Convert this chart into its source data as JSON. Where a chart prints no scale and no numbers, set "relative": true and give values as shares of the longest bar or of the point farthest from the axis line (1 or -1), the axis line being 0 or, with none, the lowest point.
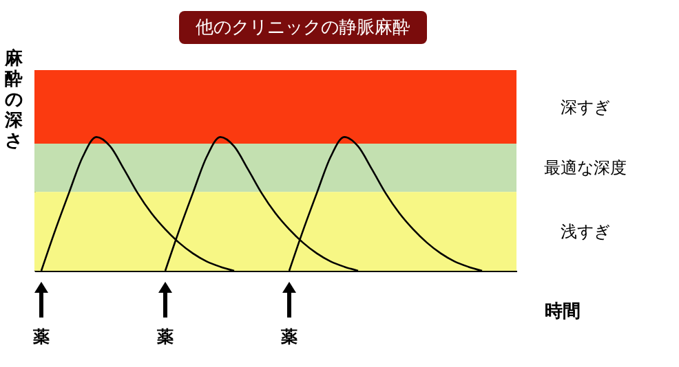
{
  "chart_data": {
    "type": "line",
    "relative": true,
    "title": "他のクリニックの静脈麻酔",
    "ylabel": "麻酔の深さ",
    "xlabel": "時間",
    "categories": [
      null,
      null,
      null,
      null,
      null,
      null,
      null,
      null,
      null,
      null,
      null,
      null,
      null,
      null,
      null,
      null,
      null,
      null,
      null,
      null,
      null,
      null,
      null,
      null,
      null,
      null,
      null,
      null,
      null,
      null,
      null,
      null,
      null,
      null,
      null
    ],
    "series": [
      {
        "color": "#000000",
        "values": [
          0,
          0.3,
          0.58,
          0.85,
          1.0,
          0.93,
          0.76,
          0.58,
          0.43,
          0.31,
          0.21,
          0.13,
          0.07,
          0.03,
          0,
          null,
          null,
          null,
          null,
          null,
          null,
          null,
          null,
          null,
          null,
          null,
          null,
          null,
          null,
          null,
          null,
          null,
          null,
          null,
          null
        ]
      },
      {
        "color": "#000000",
        "values": [
          null,
          null,
          null,
          null,
          null,
          null,
          null,
          null,
          null,
          0,
          0.3,
          0.58,
          0.85,
          1.0,
          0.93,
          0.76,
          0.58,
          0.43,
          0.31,
          0.21,
          0.13,
          0.07,
          0.03,
          0,
          null,
          null,
          null,
          null,
          null,
          null,
          null,
          null,
          null,
          null,
          null
        ]
      },
      {
        "color": "#000000",
        "values": [
          null,
          null,
          null,
          null,
          null,
          null,
          null,
          null,
          null,
          null,
          null,
          null,
          null,
          null,
          null,
          null,
          null,
          null,
          0,
          0.3,
          0.58,
          0.85,
          1.0,
          0.93,
          0.76,
          0.58,
          0.43,
          0.31,
          0.21,
          0.13,
          0.07,
          0.03,
          0,
          null,
          null
        ]
      }
    ],
    "bands": [
      {
        "axis": "y",
        "from": 0.95,
        "to": 1.5,
        "label": "深すぎ",
        "color": "#fb3a10"
      },
      {
        "axis": "y",
        "from": 0.59,
        "to": 0.95,
        "label": "最適な深度",
        "color": "#c3e0b0"
      },
      {
        "axis": "y",
        "from": 0,
        "to": 0.59,
        "label": "浅すぎ",
        "color": "#f7f785"
      }
    ],
    "annotations": [
      "薬",
      "薬",
      "薬"
    ]
  }
}
